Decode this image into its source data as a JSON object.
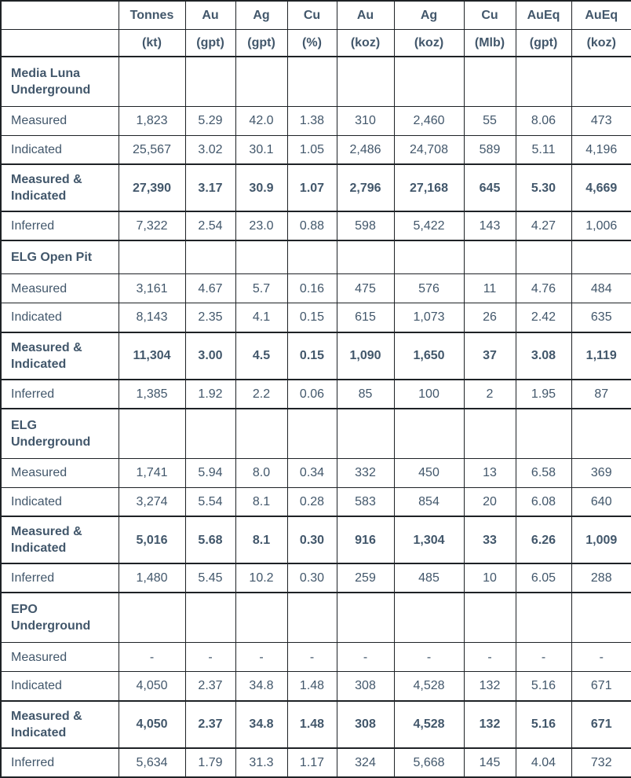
{
  "colors": {
    "text": "#42576b",
    "border": "#1e2226"
  },
  "table": {
    "columns": [
      {
        "label": "",
        "unit": ""
      },
      {
        "label": "Tonnes",
        "unit": "(kt)"
      },
      {
        "label": "Au",
        "unit": "(gpt)"
      },
      {
        "label": "Ag",
        "unit": "(gpt)"
      },
      {
        "label": "Cu",
        "unit": "(%)"
      },
      {
        "label": "Au",
        "unit": "(koz)"
      },
      {
        "label": "Ag",
        "unit": "(koz)"
      },
      {
        "label": "Cu",
        "unit": "(Mlb)"
      },
      {
        "label": "AuEq",
        "unit": "(gpt)"
      },
      {
        "label": "AuEq",
        "unit": "(koz)"
      }
    ],
    "sections": [
      {
        "title": "Media Luna Underground",
        "rows": [
          {
            "label": "Measured",
            "bold": false,
            "values": [
              "1,823",
              "5.29",
              "42.0",
              "1.38",
              "310",
              "2,460",
              "55",
              "8.06",
              "473"
            ]
          },
          {
            "label": "Indicated",
            "bold": false,
            "values": [
              "25,567",
              "3.02",
              "30.1",
              "1.05",
              "2,486",
              "24,708",
              "589",
              "5.11",
              "4,196"
            ]
          },
          {
            "label": "Measured & Indicated",
            "bold": true,
            "values": [
              "27,390",
              "3.17",
              "30.9",
              "1.07",
              "2,796",
              "27,168",
              "645",
              "5.30",
              "4,669"
            ]
          },
          {
            "label": "Inferred",
            "bold": false,
            "values": [
              "7,322",
              "2.54",
              "23.0",
              "0.88",
              "598",
              "5,422",
              "143",
              "4.27",
              "1,006"
            ]
          }
        ]
      },
      {
        "title": "ELG Open Pit",
        "rows": [
          {
            "label": "Measured",
            "bold": false,
            "values": [
              "3,161",
              "4.67",
              "5.7",
              "0.16",
              "475",
              "576",
              "11",
              "4.76",
              "484"
            ]
          },
          {
            "label": "Indicated",
            "bold": false,
            "values": [
              "8,143",
              "2.35",
              "4.1",
              "0.15",
              "615",
              "1,073",
              "26",
              "2.42",
              "635"
            ]
          },
          {
            "label": "Measured & Indicated",
            "bold": true,
            "values": [
              "11,304",
              "3.00",
              "4.5",
              "0.15",
              "1,090",
              "1,650",
              "37",
              "3.08",
              "1,119"
            ]
          },
          {
            "label": "Inferred",
            "bold": false,
            "values": [
              "1,385",
              "1.92",
              "2.2",
              "0.06",
              "85",
              "100",
              "2",
              "1.95",
              "87"
            ]
          }
        ]
      },
      {
        "title": "ELG Underground",
        "rows": [
          {
            "label": "Measured",
            "bold": false,
            "values": [
              "1,741",
              "5.94",
              "8.0",
              "0.34",
              "332",
              "450",
              "13",
              "6.58",
              "369"
            ]
          },
          {
            "label": "Indicated",
            "bold": false,
            "values": [
              "3,274",
              "5.54",
              "8.1",
              "0.28",
              "583",
              "854",
              "20",
              "6.08",
              "640"
            ]
          },
          {
            "label": "Measured & Indicated",
            "bold": true,
            "values": [
              "5,016",
              "5.68",
              "8.1",
              "0.30",
              "916",
              "1,304",
              "33",
              "6.26",
              "1,009"
            ]
          },
          {
            "label": "Inferred",
            "bold": false,
            "values": [
              "1,480",
              "5.45",
              "10.2",
              "0.30",
              "259",
              "485",
              "10",
              "6.05",
              "288"
            ]
          }
        ]
      },
      {
        "title": "EPO Underground",
        "rows": [
          {
            "label": "Measured",
            "bold": false,
            "values": [
              "-",
              "-",
              "-",
              "-",
              "-",
              "-",
              "-",
              "-",
              "-"
            ]
          },
          {
            "label": "Indicated",
            "bold": false,
            "values": [
              "4,050",
              "2.37",
              "34.8",
              "1.48",
              "308",
              "4,528",
              "132",
              "5.16",
              "671"
            ]
          },
          {
            "label": "Measured & Indicated",
            "bold": true,
            "values": [
              "4,050",
              "2.37",
              "34.8",
              "1.48",
              "308",
              "4,528",
              "132",
              "5.16",
              "671"
            ]
          },
          {
            "label": "Inferred",
            "bold": false,
            "values": [
              "5,634",
              "1.79",
              "31.3",
              "1.17",
              "324",
              "5,668",
              "145",
              "4.04",
              "732"
            ]
          }
        ]
      }
    ]
  }
}
